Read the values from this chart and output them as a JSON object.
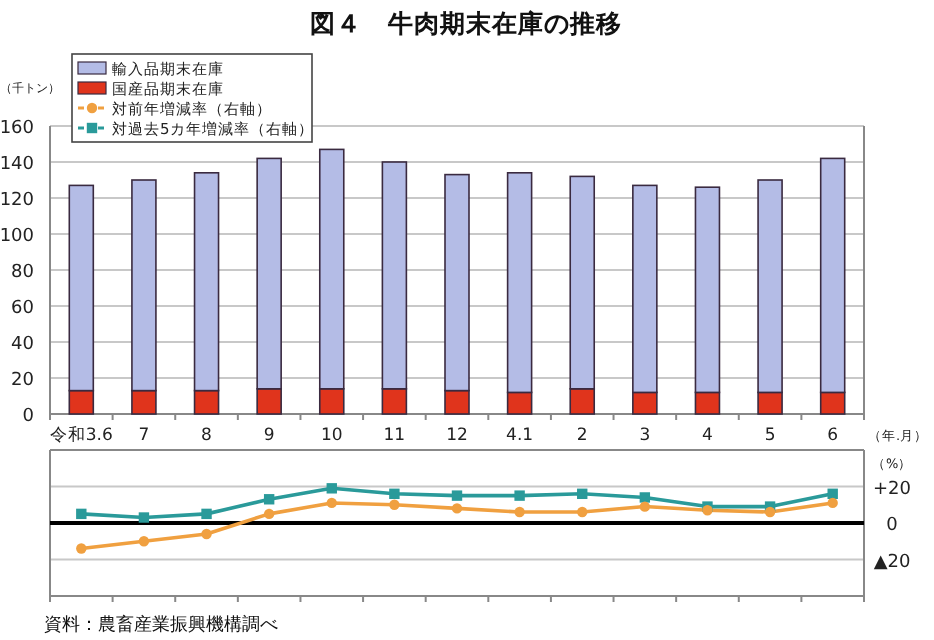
{
  "chart_data": [
    {
      "type": "bar",
      "title": "図４　牛肉期末在庫の推移",
      "ylabel": "（千トン）",
      "xlabel": "（年.月）",
      "stacked": true,
      "grid": "y",
      "legend": "top left",
      "categories": [
        "令和3.6",
        "7",
        "8",
        "9",
        "10",
        "11",
        "12",
        "4.1",
        "2",
        "3",
        "4",
        "5",
        "6"
      ],
      "ylim": [
        0,
        160
      ],
      "yticks": [
        0,
        20,
        40,
        60,
        80,
        100,
        120,
        140,
        160
      ],
      "series": [
        {
          "name": "国産品期末在庫",
          "color": "#e0341c",
          "values": [
            13,
            13,
            13,
            14,
            14,
            14,
            13,
            12,
            14,
            12,
            12,
            12,
            12
          ]
        },
        {
          "name": "輸入品期末在庫",
          "color": "#b4bce6",
          "values": [
            114,
            117,
            121,
            128,
            133,
            126,
            120,
            122,
            118,
            115,
            114,
            118,
            130
          ]
        }
      ]
    },
    {
      "type": "line",
      "ylabel": "（%）",
      "grid": "y",
      "legend": "top left",
      "tick_labels": "y",
      "categories": [
        null,
        null,
        null,
        null,
        null,
        null,
        null,
        null,
        null,
        null,
        null,
        null,
        null
      ],
      "ylim": [
        -40,
        40
      ],
      "yticks": [
        {
          "value": -20,
          "label": "▲20"
        },
        {
          "value": 0,
          "label": "0"
        },
        {
          "value": 20,
          "label": "+20"
        }
      ],
      "ref_lines": [
        {
          "axis": "y",
          "value": 0,
          "color": "#000000"
        }
      ],
      "annotations": [
        "資料：農畜産業振興機構調べ"
      ],
      "series": [
        {
          "name": "対前年増減率（右軸）",
          "color": "#f0a040",
          "marker": "circle",
          "values": [
            -14,
            -10,
            -6,
            5,
            11,
            10,
            8,
            6,
            6,
            9,
            7,
            6,
            11
          ]
        },
        {
          "name": "対過去5カ年増減率（右軸）",
          "color": "#2a9a9a",
          "marker": "square",
          "values": [
            5,
            3,
            5,
            13,
            19,
            16,
            15,
            15,
            16,
            14,
            9,
            9,
            16
          ]
        }
      ]
    }
  ]
}
